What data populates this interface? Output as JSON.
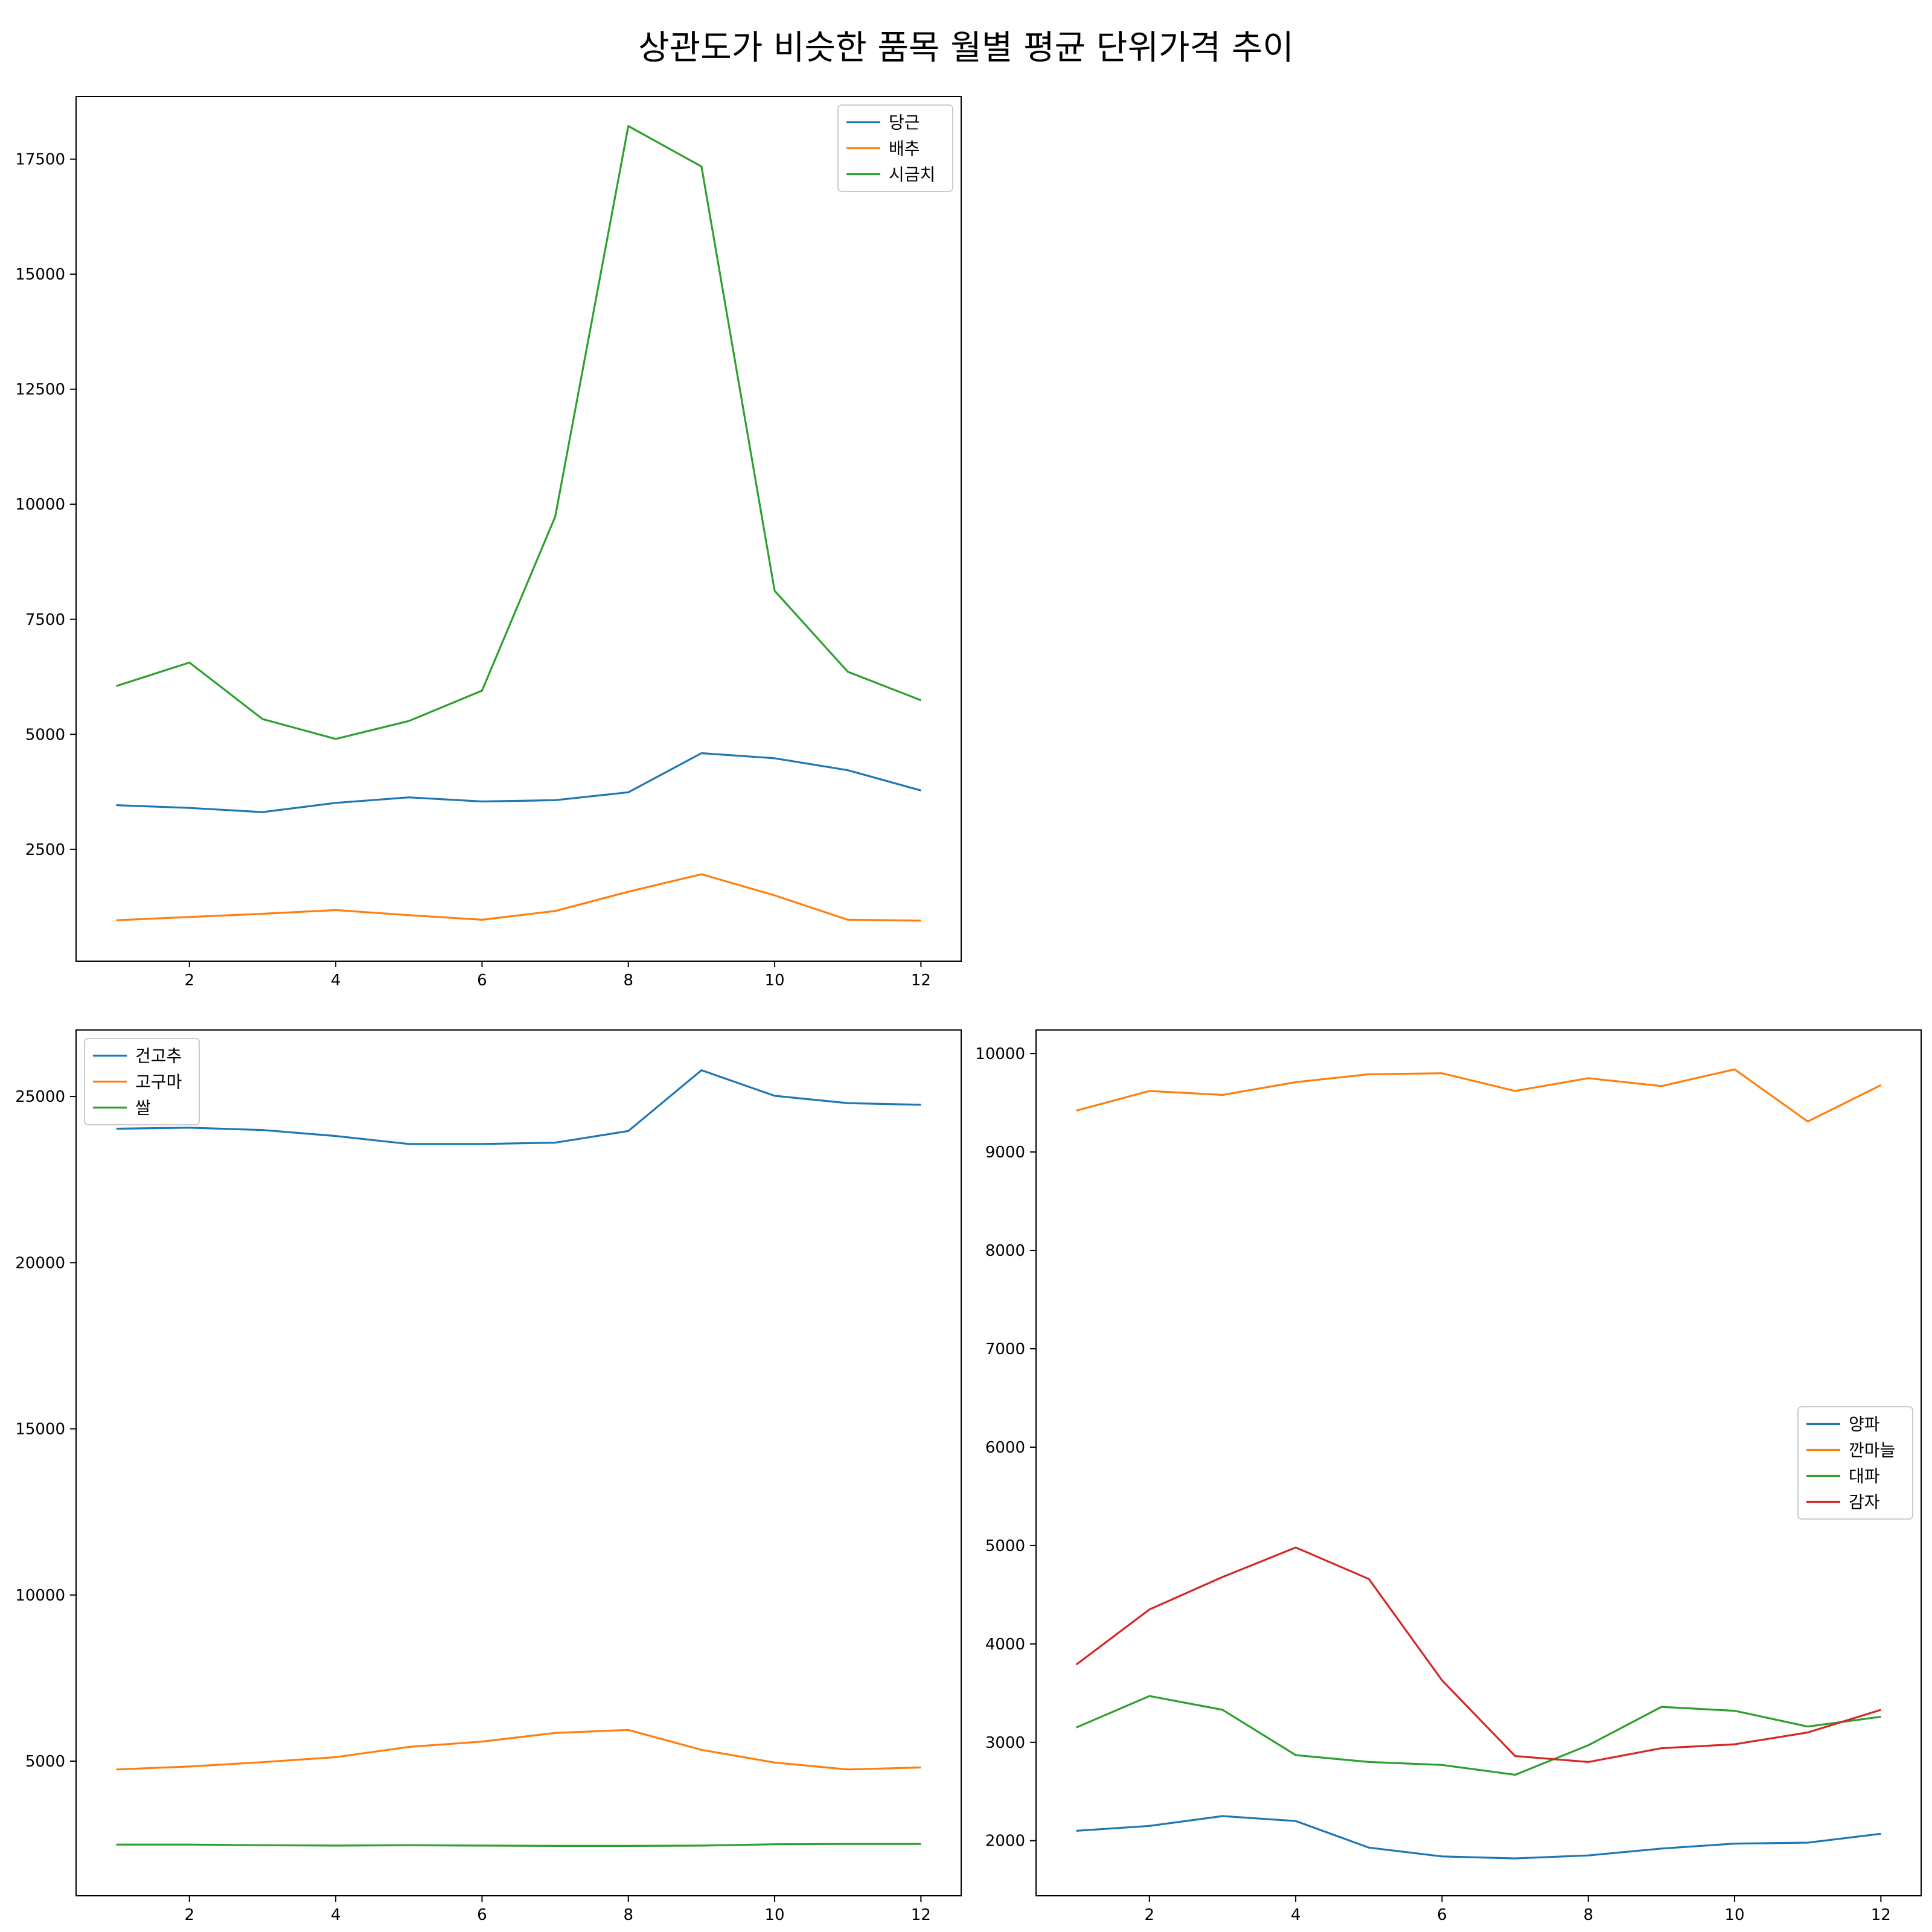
{
  "figure": {
    "title": "상관도가 비슷한 품목 월별 평균 단위가격 추이"
  },
  "chart_data": [
    {
      "id": "top-left",
      "type": "line",
      "x": [
        1,
        2,
        3,
        4,
        5,
        6,
        7,
        8,
        9,
        10,
        11,
        12
      ],
      "xticks": [
        2,
        4,
        6,
        8,
        10,
        12
      ],
      "xlim": [
        0.45,
        12.55
      ],
      "yticks": [
        2500,
        5000,
        7500,
        10000,
        12500,
        15000,
        17500
      ],
      "ylim": [
        70,
        18860
      ],
      "legend_position": "upper right",
      "series": [
        {
          "name": "당근",
          "color": "#1f77b4",
          "values": [
            3460,
            3400,
            3310,
            3510,
            3630,
            3540,
            3570,
            3740,
            4590,
            4480,
            4220,
            3780
          ]
        },
        {
          "name": "배추",
          "color": "#ff7f0e",
          "values": [
            960,
            1030,
            1100,
            1180,
            1070,
            970,
            1160,
            1580,
            1960,
            1500,
            970,
            950
          ]
        },
        {
          "name": "시금치",
          "color": "#2ca02c",
          "values": [
            6050,
            6560,
            5330,
            4900,
            5290,
            5950,
            9730,
            18220,
            17340,
            8120,
            6360,
            5740
          ]
        }
      ]
    },
    {
      "id": "bottom-left",
      "type": "line",
      "x": [
        1,
        2,
        3,
        4,
        5,
        6,
        7,
        8,
        9,
        10,
        11,
        12
      ],
      "xticks": [
        2,
        4,
        6,
        8,
        10,
        12
      ],
      "xlim": [
        0.45,
        12.55
      ],
      "yticks": [
        5000,
        10000,
        15000,
        20000,
        25000
      ],
      "ylim": [
        950,
        27000
      ],
      "legend_position": "upper left",
      "series": [
        {
          "name": "건고추",
          "color": "#1f77b4",
          "values": [
            24030,
            24060,
            23990,
            23810,
            23570,
            23570,
            23610,
            23960,
            25790,
            25020,
            24800,
            24750
          ]
        },
        {
          "name": "고구마",
          "color": "#ff7f0e",
          "values": [
            4750,
            4840,
            4970,
            5120,
            5430,
            5590,
            5850,
            5940,
            5340,
            4960,
            4750,
            4810
          ]
        },
        {
          "name": "쌀",
          "color": "#2ca02c",
          "values": [
            2490,
            2490,
            2470,
            2460,
            2470,
            2460,
            2450,
            2450,
            2460,
            2500,
            2510,
            2510
          ]
        }
      ]
    },
    {
      "id": "bottom-right",
      "type": "line",
      "x": [
        1,
        2,
        3,
        4,
        5,
        6,
        7,
        8,
        9,
        10,
        11,
        12
      ],
      "xticks": [
        2,
        4,
        6,
        8,
        10,
        12
      ],
      "xlim": [
        0.45,
        12.55
      ],
      "yticks": [
        2000,
        3000,
        4000,
        5000,
        6000,
        7000,
        8000,
        9000,
        10000
      ],
      "ylim": [
        1440,
        10240
      ],
      "legend_position": "center right",
      "series": [
        {
          "name": "양파",
          "color": "#1f77b4",
          "values": [
            2100,
            2150,
            2250,
            2200,
            1930,
            1840,
            1820,
            1850,
            1920,
            1970,
            1980,
            2070
          ]
        },
        {
          "name": "깐마늘",
          "color": "#ff7f0e",
          "values": [
            9420,
            9620,
            9580,
            9710,
            9790,
            9800,
            9620,
            9750,
            9670,
            9840,
            9310,
            9680
          ]
        },
        {
          "name": "대파",
          "color": "#2ca02c",
          "values": [
            3150,
            3470,
            3330,
            2870,
            2800,
            2770,
            2670,
            2970,
            3360,
            3320,
            3160,
            3260
          ]
        },
        {
          "name": "감자",
          "color": "#d62728",
          "values": [
            3790,
            4350,
            4680,
            4980,
            4660,
            3630,
            2860,
            2800,
            2940,
            2980,
            3100,
            3330
          ]
        }
      ]
    }
  ]
}
